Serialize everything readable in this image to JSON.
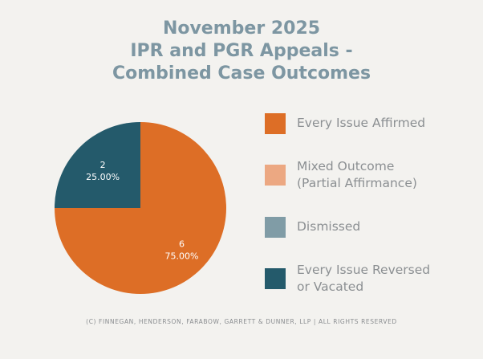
{
  "title_lines": [
    "November 2025",
    "IPR and PGR Appeals -",
    "Combined Case Outcomes"
  ],
  "chart_data": {
    "type": "pie",
    "title": "November 2025 IPR and PGR Appeals - Combined Case Outcomes",
    "slices": [
      {
        "label": "Every Issue Affirmed",
        "value": 6,
        "percent": "75.00%",
        "color": "#dd6e26"
      },
      {
        "label": "Mixed Outcome (Partial Affirmance)",
        "value": 0,
        "percent": "",
        "color": "#eca882"
      },
      {
        "label": "Dismissed",
        "value": 0,
        "percent": "",
        "color": "#809ca6"
      },
      {
        "label": "Every Issue Reversed or Vacated",
        "value": 2,
        "percent": "25.00%",
        "color": "#245a6b"
      }
    ],
    "legend": [
      {
        "line1": "Every Issue Affirmed",
        "line2": "",
        "color": "#dd6e26"
      },
      {
        "line1": "Mixed Outcome",
        "line2": "(Partial Affirmance)",
        "color": "#eca882"
      },
      {
        "line1": "Dismissed",
        "line2": "",
        "color": "#809ca6"
      },
      {
        "line1": "Every Issue Reversed",
        "line2": "or Vacated",
        "color": "#245a6b"
      }
    ],
    "legend_position": "right"
  },
  "footer": "(c) Finnegan, Henderson, Farabow, Garrett & Dunner, LLP | All Rights Reserved"
}
